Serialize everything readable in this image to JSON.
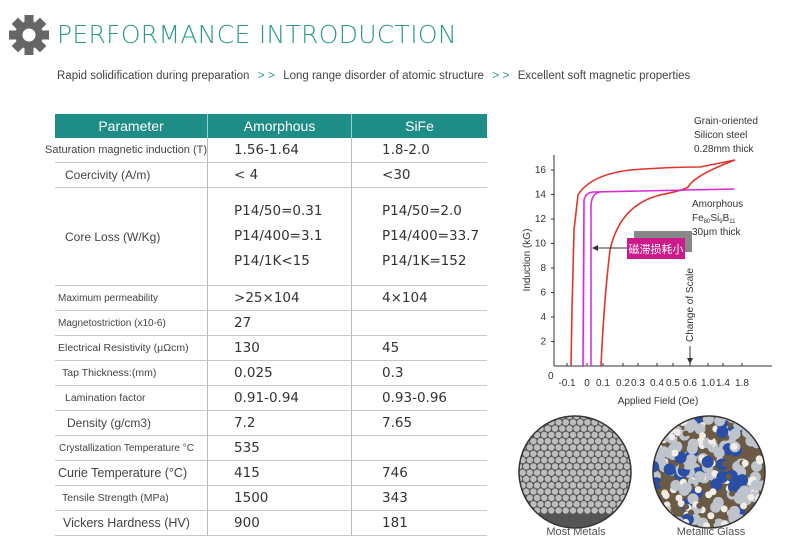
{
  "header": {
    "icon": "gear-icon",
    "title": "PERFORMANCE INTRODUCTION",
    "subtitle": {
      "steps": [
        "Rapid solidification during preparation",
        "Long range disorder of atomic structure",
        "Excellent soft magnetic properties"
      ],
      "separator": "> >"
    }
  },
  "colors": {
    "accent": "#1f8d87",
    "title": "#2a9a8f",
    "silicon_curve": "#e0352b",
    "amorphous_curve": "#d52bd6",
    "callout": "#cc1a8a"
  },
  "table": {
    "headers": [
      "Parameter",
      "Amorphous",
      "SiFe"
    ],
    "rows": [
      {
        "param": "Saturation magnetic induction (T)",
        "amorphous": "1.56-1.64",
        "sife": "1.8-2.0"
      },
      {
        "param": "Coercivity (A/m)",
        "amorphous": "< 4",
        "sife": "<30"
      },
      {
        "param": "Core Loss (W/Kg)",
        "amorphous": [
          "P14/50=0.31",
          "P14/400=3.1",
          "P14/1K<15"
        ],
        "sife": [
          "P14/50=2.0",
          "P14/400=33.7",
          "P14/1K=152"
        ]
      },
      {
        "param": "Maximum permeability",
        "amorphous": ">25×104",
        "sife": "4×104"
      },
      {
        "param": "Magnetostriction (x10-6)",
        "amorphous": "27",
        "sife": ""
      },
      {
        "param": "Electrical Resistivity (μΩcm)",
        "amorphous": "130",
        "sife": "45"
      },
      {
        "param": "Tap Thickness:(mm)",
        "amorphous": "0.025",
        "sife": "0.3"
      },
      {
        "param": "Lamination factor",
        "amorphous": "0.91-0.94",
        "sife": "0.93-0.96"
      },
      {
        "param": "Density (g/cm3)",
        "amorphous": "7.2",
        "sife": "7.65"
      },
      {
        "param": "Crystallization Temperature °C",
        "amorphous": "535",
        "sife": ""
      },
      {
        "param": "Curie Temperature (°C)",
        "amorphous": "415",
        "sife": "746"
      },
      {
        "param": "Tensile Strength (MPa)",
        "amorphous": "1500",
        "sife": "343"
      },
      {
        "param": "Vickers Hardness (HV)",
        "amorphous": "900",
        "sife": "181"
      }
    ]
  },
  "chart_data": {
    "type": "line",
    "title": "",
    "xlabel": "Applied Field (Oe)",
    "ylabel": "Induction (kG)",
    "x_ticks": [
      "-0.1",
      "0",
      "0.1",
      "0.2",
      "0.3",
      "0.4",
      "0.5",
      "0.6",
      "1.0",
      "1.4",
      "1.8"
    ],
    "y_ticks": [
      "2",
      "4",
      "6",
      "8",
      "10",
      "12",
      "14",
      "16"
    ],
    "origin_label": "0",
    "ylim": [
      0,
      17
    ],
    "series": [
      {
        "name": "Grain-oriented Silicon steel 0.28mm thick",
        "label_lines": [
          "Grain-oriented",
          "Silicon steel",
          "0.28mm thick"
        ],
        "saturation": 16.8,
        "coercive_field": 0.1
      },
      {
        "name": "Amorphous Fe80Si9B11 30μm thick",
        "label_lines": [
          "Amorphous",
          "Fe",
          "80",
          "Si",
          "9",
          "B",
          "11",
          "30μm thick"
        ],
        "saturation": 14.5,
        "coercive_field": 0.01
      }
    ],
    "annotations": {
      "change_of_scale": "Change of Scale",
      "callout": "磁滞损耗小"
    }
  },
  "structures": [
    {
      "label": "Most Metals"
    },
    {
      "label": "Metallic Glass"
    }
  ]
}
